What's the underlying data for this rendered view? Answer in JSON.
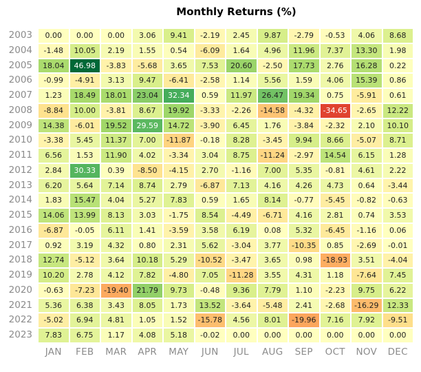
{
  "title": "Monthly Returns (%)",
  "colors": {
    "label_gray": "#8b8b8b",
    "cell_text_dark": "#1f1f1f",
    "cell_text_light": "#ffffff",
    "background": "#ffffff"
  },
  "chart_data": {
    "type": "heatmap",
    "title": "Monthly Returns (%)",
    "rows": [
      "2003",
      "2004",
      "2005",
      "2006",
      "2007",
      "2008",
      "2009",
      "2010",
      "2011",
      "2012",
      "2013",
      "2014",
      "2015",
      "2016",
      "2017",
      "2018",
      "2019",
      "2020",
      "2021",
      "2022",
      "2023"
    ],
    "columns": [
      "JAN",
      "FEB",
      "MAR",
      "APR",
      "MAY",
      "JUN",
      "JUL",
      "AUG",
      "SEP",
      "OCT",
      "NOV",
      "DEC"
    ],
    "vmin": -47,
    "vmax": 47,
    "colormap": {
      "name": "RdYlGn",
      "stops": [
        "#a50026",
        "#d73027",
        "#f46d43",
        "#fdae61",
        "#fee08b",
        "#ffffbf",
        "#d9ef8b",
        "#a6d96a",
        "#66bd63",
        "#1a9850",
        "#006837"
      ]
    },
    "value_format_decimals": 2,
    "values": [
      [
        0.0,
        0.0,
        0.0,
        3.06,
        9.41,
        -2.19,
        2.45,
        9.87,
        -2.79,
        -0.53,
        4.06,
        8.68
      ],
      [
        -1.48,
        10.05,
        2.19,
        1.55,
        0.54,
        -6.09,
        1.64,
        4.96,
        11.96,
        7.37,
        13.3,
        1.98
      ],
      [
        18.04,
        46.98,
        -3.83,
        -5.68,
        3.65,
        7.53,
        20.6,
        -2.5,
        17.73,
        2.76,
        16.28,
        0.22
      ],
      [
        -0.99,
        -4.91,
        3.13,
        9.47,
        -6.41,
        -2.58,
        1.14,
        5.56,
        1.59,
        4.06,
        15.39,
        0.86
      ],
      [
        1.23,
        18.49,
        18.01,
        23.04,
        32.34,
        0.59,
        11.97,
        26.47,
        19.34,
        0.75,
        -5.91,
        0.61
      ],
      [
        -8.84,
        10.0,
        -3.81,
        8.67,
        19.92,
        -3.33,
        -2.26,
        -14.58,
        -4.32,
        -34.65,
        -2.65,
        12.22
      ],
      [
        14.38,
        -6.01,
        19.52,
        29.59,
        14.72,
        -3.9,
        6.45,
        1.76,
        -3.84,
        -2.32,
        2.1,
        10.1
      ],
      [
        -3.38,
        5.45,
        11.37,
        7.0,
        -11.87,
        -0.18,
        8.28,
        -3.45,
        9.94,
        8.66,
        -5.07,
        8.71
      ],
      [
        6.56,
        1.53,
        11.9,
        4.02,
        -3.34,
        3.04,
        8.75,
        -11.24,
        -2.97,
        14.54,
        6.15,
        1.28
      ],
      [
        2.84,
        30.33,
        0.39,
        -8.5,
        -4.15,
        2.7,
        -1.16,
        7.0,
        5.35,
        -0.81,
        4.61,
        2.22
      ],
      [
        6.2,
        5.64,
        7.14,
        8.74,
        2.79,
        -6.87,
        7.13,
        4.16,
        4.26,
        4.73,
        0.64,
        -3.44
      ],
      [
        1.83,
        15.47,
        4.04,
        5.27,
        7.83,
        0.59,
        1.65,
        8.14,
        -0.77,
        -5.45,
        -0.82,
        -0.63
      ],
      [
        14.06,
        13.99,
        8.13,
        3.03,
        -1.75,
        8.54,
        -4.49,
        -6.71,
        4.16,
        2.81,
        0.74,
        3.53
      ],
      [
        -6.87,
        -0.05,
        6.11,
        1.41,
        -3.59,
        3.58,
        6.19,
        0.08,
        5.32,
        -6.45,
        -1.16,
        0.06
      ],
      [
        0.92,
        3.19,
        4.32,
        0.8,
        2.31,
        5.62,
        -3.04,
        3.77,
        -10.35,
        0.85,
        -2.69,
        -0.01
      ],
      [
        12.74,
        -5.12,
        3.64,
        10.18,
        5.29,
        -10.52,
        -3.47,
        3.65,
        0.98,
        -18.93,
        3.51,
        -4.04
      ],
      [
        10.2,
        2.78,
        4.12,
        7.82,
        -4.8,
        7.05,
        -11.28,
        3.55,
        4.31,
        1.18,
        -7.64,
        7.45
      ],
      [
        -0.63,
        -7.23,
        -19.4,
        21.79,
        9.73,
        -0.48,
        9.36,
        7.79,
        1.1,
        -2.23,
        9.75,
        6.22
      ],
      [
        5.36,
        6.38,
        3.43,
        8.05,
        1.73,
        13.52,
        -3.64,
        -5.48,
        2.41,
        -2.68,
        -16.29,
        12.33
      ],
      [
        -5.02,
        6.94,
        4.81,
        1.05,
        1.52,
        -15.78,
        4.56,
        8.01,
        -19.96,
        7.16,
        7.92,
        -9.51
      ],
      [
        7.83,
        6.75,
        1.17,
        4.08,
        5.18,
        -0.02,
        0.0,
        0.0,
        0.0,
        0.0,
        0.0,
        0.0
      ]
    ]
  }
}
